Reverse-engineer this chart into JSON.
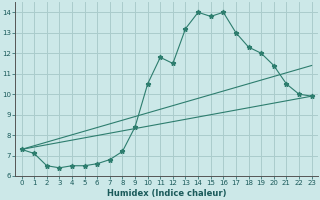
{
  "title": "",
  "xlabel": "Humidex (Indice chaleur)",
  "ylabel": "",
  "bg_color": "#cce8e8",
  "grid_color": "#aacccc",
  "line_color": "#2d7d6e",
  "xlim": [
    -0.5,
    23.5
  ],
  "ylim": [
    6,
    14.5
  ],
  "yticks": [
    6,
    7,
    8,
    9,
    10,
    11,
    12,
    13,
    14
  ],
  "xticks": [
    0,
    1,
    2,
    3,
    4,
    5,
    6,
    7,
    8,
    9,
    10,
    11,
    12,
    13,
    14,
    15,
    16,
    17,
    18,
    19,
    20,
    21,
    22,
    23
  ],
  "series": [
    {
      "x": [
        0,
        1,
        2,
        3,
        4,
        5,
        6,
        7,
        8,
        9,
        10,
        11,
        12,
        13,
        14,
        15,
        16,
        17,
        18,
        19,
        20,
        21,
        22,
        23
      ],
      "y": [
        7.3,
        7.1,
        6.5,
        6.4,
        6.5,
        6.5,
        6.6,
        6.8,
        7.2,
        8.4,
        10.5,
        11.8,
        11.5,
        13.2,
        14.0,
        13.8,
        14.0,
        13.0,
        12.3,
        12.0,
        11.4,
        10.5,
        10.0,
        9.9
      ]
    },
    {
      "x": [
        0,
        23
      ],
      "y": [
        7.3,
        9.9
      ]
    },
    {
      "x": [
        0,
        23
      ],
      "y": [
        7.3,
        11.4
      ]
    }
  ]
}
